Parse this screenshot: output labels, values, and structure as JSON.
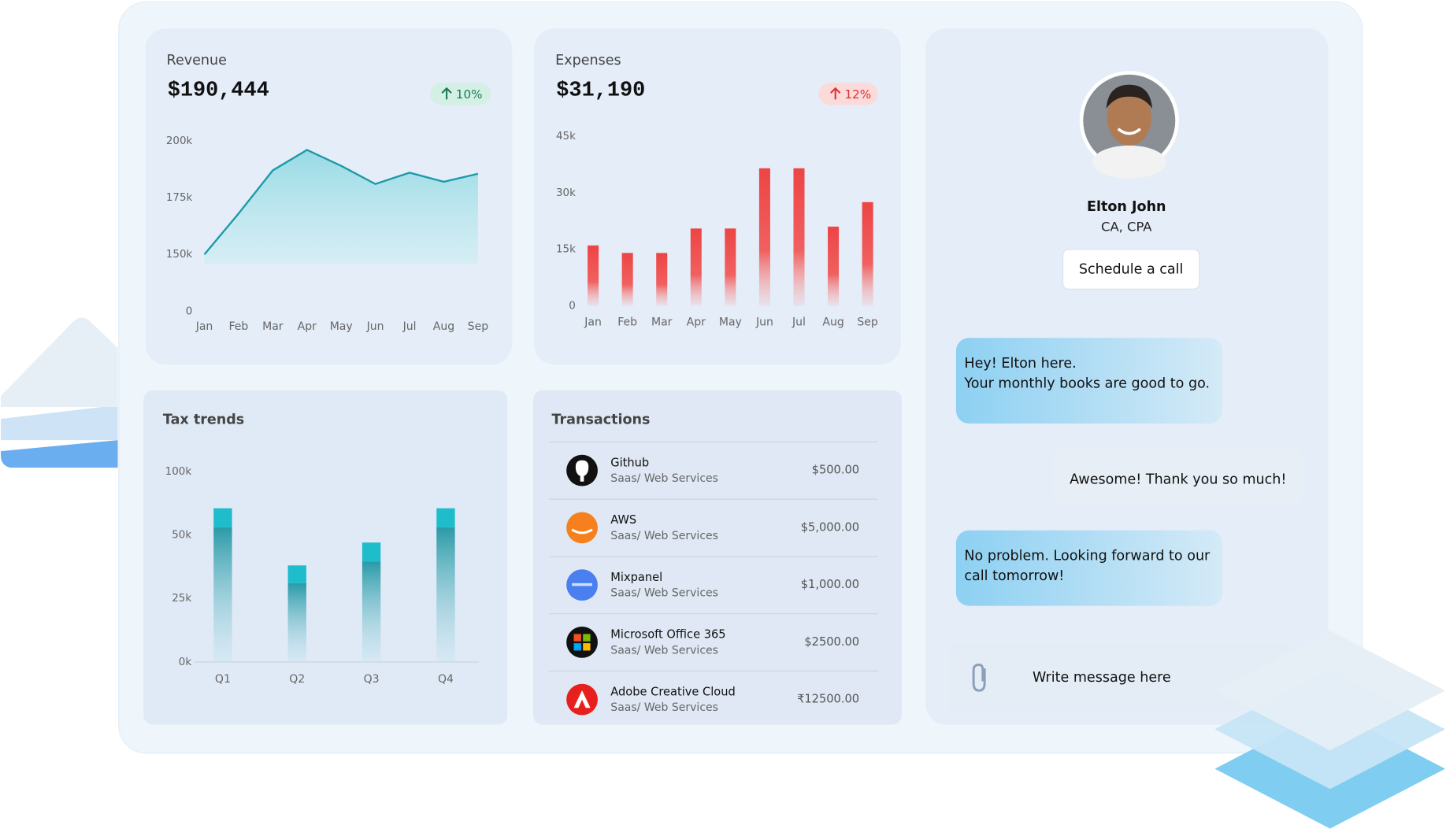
{
  "chart_data": [
    {
      "type": "line",
      "title": "Revenue",
      "subtitle": "$190,444",
      "annotation": "10%",
      "color": "#1b9aa8",
      "scale": "piecewise",
      "categories": [
        "Jan",
        "Feb",
        "Mar",
        "Apr",
        "May",
        "Jun",
        "Jul",
        "Aug",
        "Sep"
      ],
      "values": [
        150000,
        168000,
        187000,
        196000,
        189000,
        181000,
        186000,
        182000,
        185500
      ],
      "ylim": [
        0,
        200000
      ],
      "yticks": [
        0,
        {
          "value": 150000,
          "label": "150k"
        },
        {
          "value": 175000,
          "label": "175k"
        },
        {
          "value": 200000,
          "label": "200k"
        }
      ]
    },
    {
      "type": "bar",
      "title": "Expenses",
      "subtitle": "$31,190",
      "annotation": "12%",
      "color": "#ee4444",
      "categories": [
        "Jan",
        "Feb",
        "Mar",
        "Apr",
        "May",
        "Jun",
        "Jul",
        "Aug",
        "Sep"
      ],
      "values": [
        16000,
        14000,
        14000,
        20500,
        20500,
        36500,
        36500,
        21000,
        27500
      ],
      "ylim": [
        0,
        45000
      ],
      "yticks": [
        0,
        {
          "value": 15000,
          "label": "15k"
        },
        {
          "value": 30000,
          "label": "30k"
        },
        {
          "value": 45000,
          "label": "45k"
        }
      ]
    },
    {
      "type": "stacked_bar",
      "title": "Tax trends",
      "scale": "piecewise",
      "categories": [
        "Q1",
        "Q2",
        "Q3",
        "Q4"
      ],
      "series": [
        {
          "color": "#2a9aa8",
          "values": [
            56000,
            31000,
            39500,
            56000
          ]
        },
        {
          "color": "#1fbccc",
          "values": [
            15000,
            7000,
            7500,
            15000
          ]
        }
      ],
      "ylim": [
        0,
        100000
      ],
      "yticks": [
        {
          "value": 0,
          "label": "0k"
        },
        {
          "value": 25000,
          "label": "25k"
        },
        {
          "value": 50000,
          "label": "50k"
        },
        {
          "value": 100000,
          "label": "100k"
        }
      ]
    }
  ],
  "transactions": {
    "title": "Transactions",
    "rows": [
      {
        "name": "Github",
        "category": "Saas/ Web Services",
        "amount": "$500.00"
      },
      {
        "name": "AWS",
        "category": "Saas/ Web Services",
        "amount": "$5,000.00"
      },
      {
        "name": "Mixpanel",
        "category": "Saas/ Web Services",
        "amount": "$1,000.00"
      },
      {
        "name": "Microsoft Office 365",
        "category": "Saas/ Web Services",
        "amount": "$2500.00"
      },
      {
        "name": "Adobe Creative Cloud",
        "category": "Saas/ Web Services",
        "amount": "₹12500.00"
      }
    ]
  },
  "advisor": {
    "name": "Elton John",
    "role": "CA, CPA",
    "button": "Schedule a call"
  },
  "messages": [
    {
      "lines": [
        "Hey! Elton here.",
        "Your monthly books are good to go."
      ]
    },
    {
      "lines": [
        "Awesome! Thank you so much!"
      ]
    },
    {
      "lines": [
        "No problem. Looking forward to our",
        "call tomorrow!"
      ]
    }
  ],
  "input_placeholder": "Write message here"
}
